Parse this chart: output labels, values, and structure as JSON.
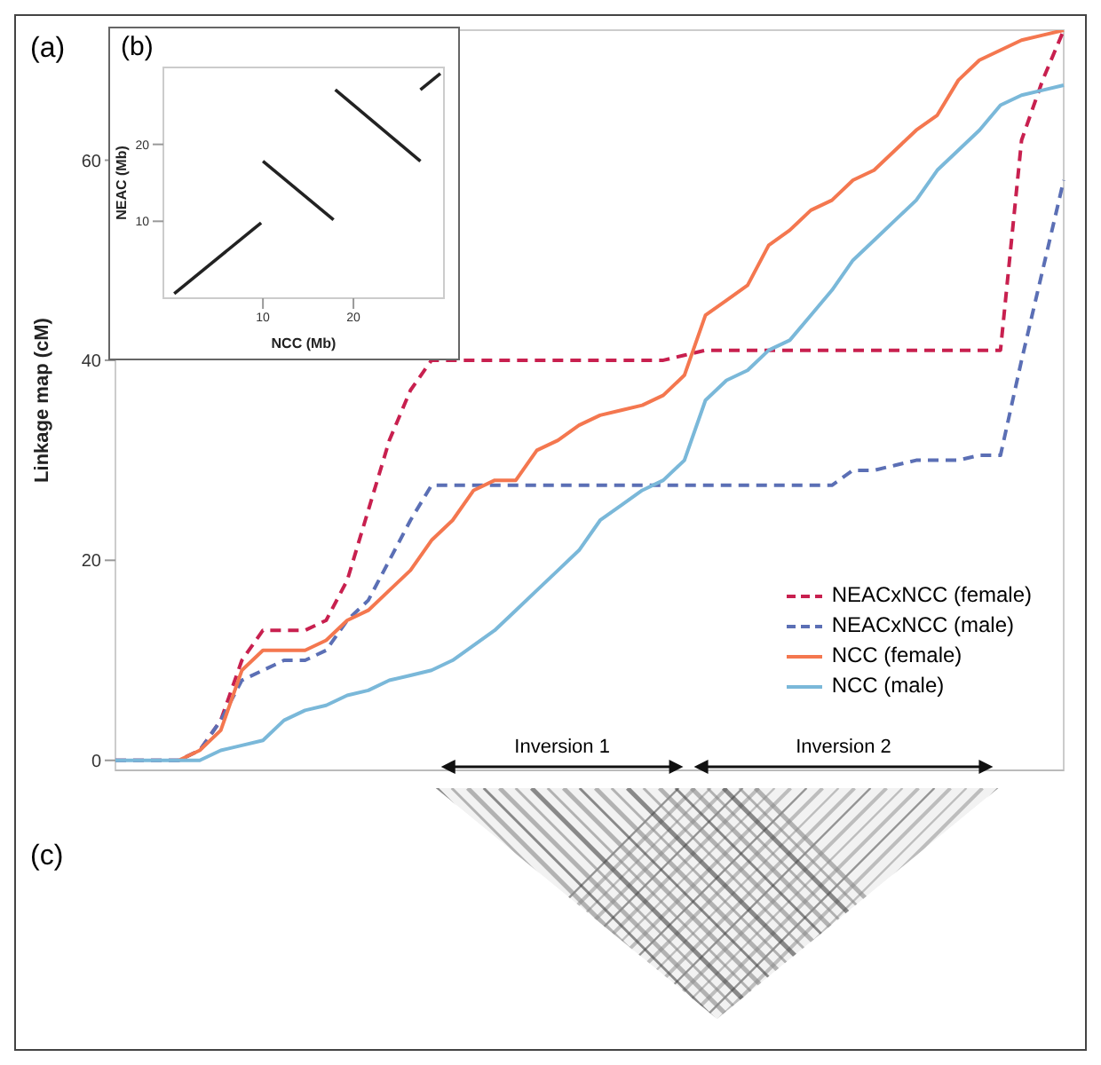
{
  "chart_data": [
    {
      "type": "line",
      "ylabel": "Linkage map (cM)",
      "categories": [
        null,
        null,
        null,
        null,
        null,
        null,
        null,
        null,
        null,
        null,
        null,
        null,
        null,
        null,
        null,
        null,
        null,
        null,
        null,
        null,
        null,
        null,
        null,
        null,
        null,
        null,
        null,
        null,
        null,
        null,
        null,
        null,
        null,
        null,
        null,
        null,
        null,
        null,
        null,
        null,
        null,
        null,
        null,
        null,
        null,
        null
      ],
      "series": [
        {
          "name": "NEACxNCC (female)",
          "color": "#c8204f",
          "line_style": "dashed",
          "values": [
            0,
            0,
            0,
            0,
            1,
            4,
            10,
            13,
            13,
            13,
            14,
            18,
            25,
            32,
            37,
            40,
            40,
            40,
            40,
            40,
            40,
            40,
            40,
            40,
            40,
            40,
            40,
            40.5,
            41,
            41,
            41,
            41,
            41,
            41,
            41,
            41,
            41,
            41,
            41,
            41,
            41,
            41,
            41,
            62,
            68,
            73
          ]
        },
        {
          "name": "NEACxNCC (male)",
          "color": "#5b6fb5",
          "line_style": "dashed",
          "values": [
            0,
            0,
            0,
            0,
            1,
            4,
            8,
            9,
            10,
            10,
            11,
            14,
            16,
            20,
            24,
            27.5,
            27.5,
            27.5,
            27.5,
            27.5,
            27.5,
            27.5,
            27.5,
            27.5,
            27.5,
            27.5,
            27.5,
            27.5,
            27.5,
            27.5,
            27.5,
            27.5,
            27.5,
            27.5,
            27.5,
            29,
            29,
            29.5,
            30,
            30,
            30,
            30.5,
            30.5,
            40,
            49,
            58
          ]
        },
        {
          "name": "NCC (female)",
          "color": "#f4774f",
          "line_style": "solid",
          "values": [
            null,
            null,
            null,
            0,
            1,
            3,
            9,
            11,
            11,
            11,
            12,
            14,
            15,
            17,
            19,
            22,
            24,
            27,
            28,
            28,
            31,
            32,
            33.5,
            34.5,
            35,
            35.5,
            36.5,
            38.5,
            44.5,
            46,
            47.5,
            51.5,
            53,
            55,
            56,
            58,
            59,
            61,
            63,
            64.5,
            68,
            70,
            71,
            72,
            72.5,
            73
          ]
        },
        {
          "name": "NCC (male)",
          "color": "#7ab8d9",
          "line_style": "solid",
          "values": [
            0,
            0,
            0,
            0,
            0,
            1,
            1.5,
            2,
            4,
            5,
            5.5,
            6.5,
            7,
            8,
            8.5,
            9,
            10,
            11.5,
            13,
            15,
            17,
            19,
            21,
            24,
            25.5,
            27,
            28,
            30,
            36,
            38,
            39,
            41,
            42,
            44.5,
            47,
            50,
            52,
            54,
            56,
            59,
            61,
            63,
            65.5,
            66.5,
            67,
            67.5
          ]
        }
      ],
      "ylim": [
        -1,
        73
      ],
      "yticks": [
        0,
        20,
        40,
        60
      ],
      "tick_labels": "y",
      "legend": "bottom right",
      "marker": "none",
      "annotations": [
        "(a)",
        "(c)",
        "Inversion 1",
        "Inversion 2"
      ]
    },
    {
      "type": "line",
      "xlabel": "NCC (Mb)",
      "ylabel": "NEAC (Mb)",
      "series": [
        {
          "color": "#222222",
          "x": [
            0.2,
            9.8
          ],
          "values": [
            0.6,
            9.8
          ]
        },
        {
          "color": "#222222",
          "x": [
            10,
            17.8
          ],
          "values": [
            17.8,
            10.2
          ]
        },
        {
          "color": "#222222",
          "x": [
            18,
            27.4
          ],
          "values": [
            27.1,
            17.8
          ]
        },
        {
          "color": "#222222",
          "x": [
            27.4,
            29.6
          ],
          "values": [
            27.1,
            29.2
          ]
        }
      ],
      "xlim": [
        -1,
        30
      ],
      "xticks": [
        10,
        20
      ],
      "ylim": [
        0,
        30
      ],
      "yticks": [
        10,
        20
      ],
      "marker": "none",
      "annotations": [
        "(b)"
      ]
    }
  ]
}
